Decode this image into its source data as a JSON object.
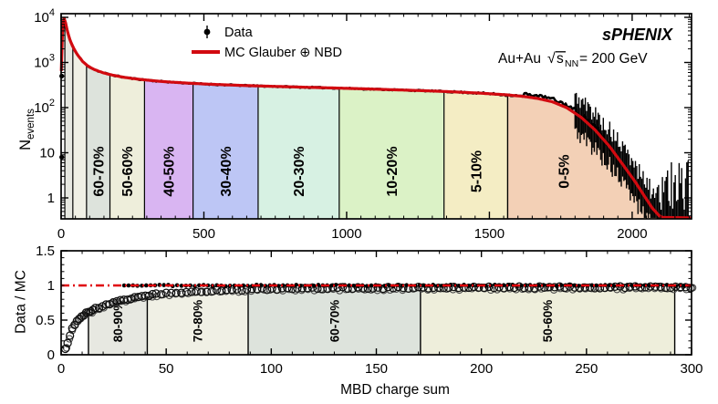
{
  "header": {
    "experiment": "sPHENIX",
    "beam": "Au+Au",
    "sqrt_sym": "√",
    "s": "s",
    "s_sub": "NN",
    "energy_suffix": "= 200 GeV"
  },
  "legend": {
    "entries": [
      {
        "label": "Data",
        "marker": "black-point-with-error-bar"
      },
      {
        "label": "MC Glauber ⊕ NBD",
        "marker": "red-line"
      }
    ]
  },
  "colors": {
    "mc_line": "#d20a10",
    "data": "#000000",
    "ratio_ref_line": "#e00008",
    "frame": "#000000"
  },
  "chart_data": [
    {
      "id": "main",
      "type": "area",
      "title": "",
      "xlabel": "",
      "ylabel": {
        "main": "N",
        "sub": "events"
      },
      "x_range": [
        0,
        2208
      ],
      "y_range_log": [
        0.35,
        12000
      ],
      "x_major_ticks": [
        0,
        500,
        1000,
        1500,
        2000
      ],
      "x_tick_labels": [
        "0",
        "500",
        "1000",
        "1500",
        "2000"
      ],
      "x_minor_step": 50,
      "y_major_ticks": [
        1,
        10,
        100,
        1000,
        10000
      ],
      "y_tick_labels": [
        {
          "base": "1"
        },
        {
          "base": "10"
        },
        {
          "base": "10",
          "exp": "2"
        },
        {
          "base": "10",
          "exp": "3"
        },
        {
          "base": "10",
          "exp": "4"
        }
      ],
      "grid": false,
      "legend_position": "top-center",
      "centrality_bands": [
        {
          "label": "",
          "range": [
            13,
            41
          ],
          "color": "#e7e8e1"
        },
        {
          "label": "",
          "range": [
            41,
            89
          ],
          "color": "#f0f0e5"
        },
        {
          "label": "60-70%",
          "range": [
            89,
            171
          ],
          "color": "#dde3dc"
        },
        {
          "label": "50-60%",
          "range": [
            171,
            292
          ],
          "color": "#eeeedb"
        },
        {
          "label": "40-50%",
          "range": [
            292,
            462
          ],
          "color": "#d9b5f2"
        },
        {
          "label": "30-40%",
          "range": [
            462,
            690
          ],
          "color": "#bdc6f5"
        },
        {
          "label": "20-30%",
          "range": [
            690,
            974
          ],
          "color": "#d7f1e3"
        },
        {
          "label": "10-20%",
          "range": [
            974,
            1341
          ],
          "color": "#dbf2c6"
        },
        {
          "label": "5-10%",
          "range": [
            1341,
            1564
          ],
          "color": "#f4edc4"
        },
        {
          "label": "0-5%",
          "range": [
            1564,
            2100
          ],
          "color": "#f3d0b6",
          "label_x": 1760
        }
      ],
      "mc_curve": [
        [
          0.5,
          650
        ],
        [
          2,
          1800
        ],
        [
          4,
          4500
        ],
        [
          6,
          7500
        ],
        [
          8,
          9300
        ],
        [
          10,
          9700
        ],
        [
          13,
          8800
        ],
        [
          16,
          7300
        ],
        [
          20,
          5600
        ],
        [
          25,
          4200
        ],
        [
          30,
          3300
        ],
        [
          36,
          2650
        ],
        [
          41,
          2250
        ],
        [
          48,
          1850
        ],
        [
          56,
          1520
        ],
        [
          65,
          1280
        ],
        [
          75,
          1060
        ],
        [
          89,
          880
        ],
        [
          100,
          790
        ],
        [
          115,
          705
        ],
        [
          132,
          638
        ],
        [
          150,
          585
        ],
        [
          171,
          540
        ],
        [
          195,
          502
        ],
        [
          220,
          470
        ],
        [
          250,
          442
        ],
        [
          275,
          424
        ],
        [
          292,
          413
        ],
        [
          320,
          396
        ],
        [
          350,
          381
        ],
        [
          385,
          367
        ],
        [
          420,
          356
        ],
        [
          462,
          344
        ],
        [
          500,
          334
        ],
        [
          545,
          325
        ],
        [
          590,
          317
        ],
        [
          640,
          309
        ],
        [
          690,
          302
        ],
        [
          740,
          296
        ],
        [
          800,
          289
        ],
        [
          860,
          282
        ],
        [
          920,
          276
        ],
        [
          974,
          270
        ],
        [
          1040,
          263
        ],
        [
          1110,
          255
        ],
        [
          1180,
          247
        ],
        [
          1260,
          238
        ],
        [
          1341,
          228
        ],
        [
          1410,
          218
        ],
        [
          1480,
          207
        ],
        [
          1564,
          191
        ],
        [
          1620,
          177
        ],
        [
          1670,
          159
        ],
        [
          1720,
          135
        ],
        [
          1770,
          100
        ],
        [
          1820,
          62
        ],
        [
          1870,
          32
        ],
        [
          1920,
          14
        ],
        [
          1970,
          5.2
        ],
        [
          2010,
          2.3
        ],
        [
          2045,
          1.05
        ],
        [
          2070,
          0.6
        ],
        [
          2095,
          0.4
        ],
        [
          2110,
          0.36
        ]
      ],
      "left_axis_data_points": [
        [
          2,
          500
        ],
        [
          2,
          8
        ]
      ]
    },
    {
      "id": "ratio",
      "type": "scatter",
      "xlabel": "MBD charge sum",
      "ylabel": "Data / MC",
      "x_range": [
        0,
        300
      ],
      "y_range": [
        0,
        1.5
      ],
      "x_major_ticks": [
        0,
        50,
        100,
        150,
        200,
        250,
        300
      ],
      "x_tick_labels": [
        "0",
        "50",
        "100",
        "150",
        "200",
        "250",
        "300"
      ],
      "x_minor_step": 10,
      "y_major_ticks": [
        0,
        0.5,
        1,
        1.5
      ],
      "y_tick_labels": [
        "0",
        "0.5",
        "1",
        "1.5"
      ],
      "y_minor_step": 0.1,
      "grid": false,
      "reference_line_y": 1,
      "centrality_bands": [
        {
          "label": "80-90%",
          "range": [
            13,
            41
          ],
          "color": "#e7e8e1"
        },
        {
          "label": "70-80%",
          "range": [
            41,
            89
          ],
          "color": "#f0f0e5"
        },
        {
          "label": "60-70%",
          "range": [
            89,
            171
          ],
          "color": "#dde3dc"
        },
        {
          "label": "50-60%",
          "range": [
            171,
            292
          ],
          "color": "#eeeedb"
        }
      ],
      "ratio_trend": [
        [
          1,
          0.02
        ],
        [
          2,
          0.08
        ],
        [
          3,
          0.17
        ],
        [
          4,
          0.27
        ],
        [
          5,
          0.35
        ],
        [
          6,
          0.42
        ],
        [
          7,
          0.47
        ],
        [
          8,
          0.51
        ],
        [
          9,
          0.545
        ],
        [
          10,
          0.565
        ],
        [
          11,
          0.585
        ],
        [
          12,
          0.6
        ],
        [
          13,
          0.615
        ],
        [
          14,
          0.63
        ],
        [
          15,
          0.645
        ],
        [
          16,
          0.66
        ],
        [
          18,
          0.685
        ],
        [
          20,
          0.71
        ],
        [
          22,
          0.73
        ],
        [
          24,
          0.75
        ],
        [
          26,
          0.768
        ],
        [
          28,
          0.783
        ],
        [
          30,
          0.797
        ],
        [
          32,
          0.81
        ],
        [
          34,
          0.822
        ],
        [
          36,
          0.833
        ],
        [
          38,
          0.843
        ],
        [
          40,
          0.852
        ],
        [
          43,
          0.864
        ],
        [
          46,
          0.874
        ],
        [
          50,
          0.885
        ],
        [
          54,
          0.894
        ],
        [
          58,
          0.902
        ],
        [
          62,
          0.909
        ],
        [
          66,
          0.915
        ],
        [
          70,
          0.92
        ],
        [
          75,
          0.926
        ],
        [
          80,
          0.931
        ],
        [
          85,
          0.936
        ],
        [
          89,
          0.94
        ],
        [
          95,
          0.945
        ],
        [
          100,
          0.949
        ],
        [
          110,
          0.955
        ],
        [
          120,
          0.959
        ],
        [
          130,
          0.962
        ],
        [
          145,
          0.965
        ],
        [
          160,
          0.967
        ],
        [
          180,
          0.969
        ],
        [
          200,
          0.971
        ],
        [
          220,
          0.972
        ],
        [
          240,
          0.973
        ],
        [
          260,
          0.974
        ],
        [
          280,
          0.974
        ],
        [
          300,
          0.974
        ]
      ]
    }
  ],
  "render_hints": {
    "seeds": {
      "top_data": 11,
      "tail": 5,
      "ratio": 23
    }
  }
}
